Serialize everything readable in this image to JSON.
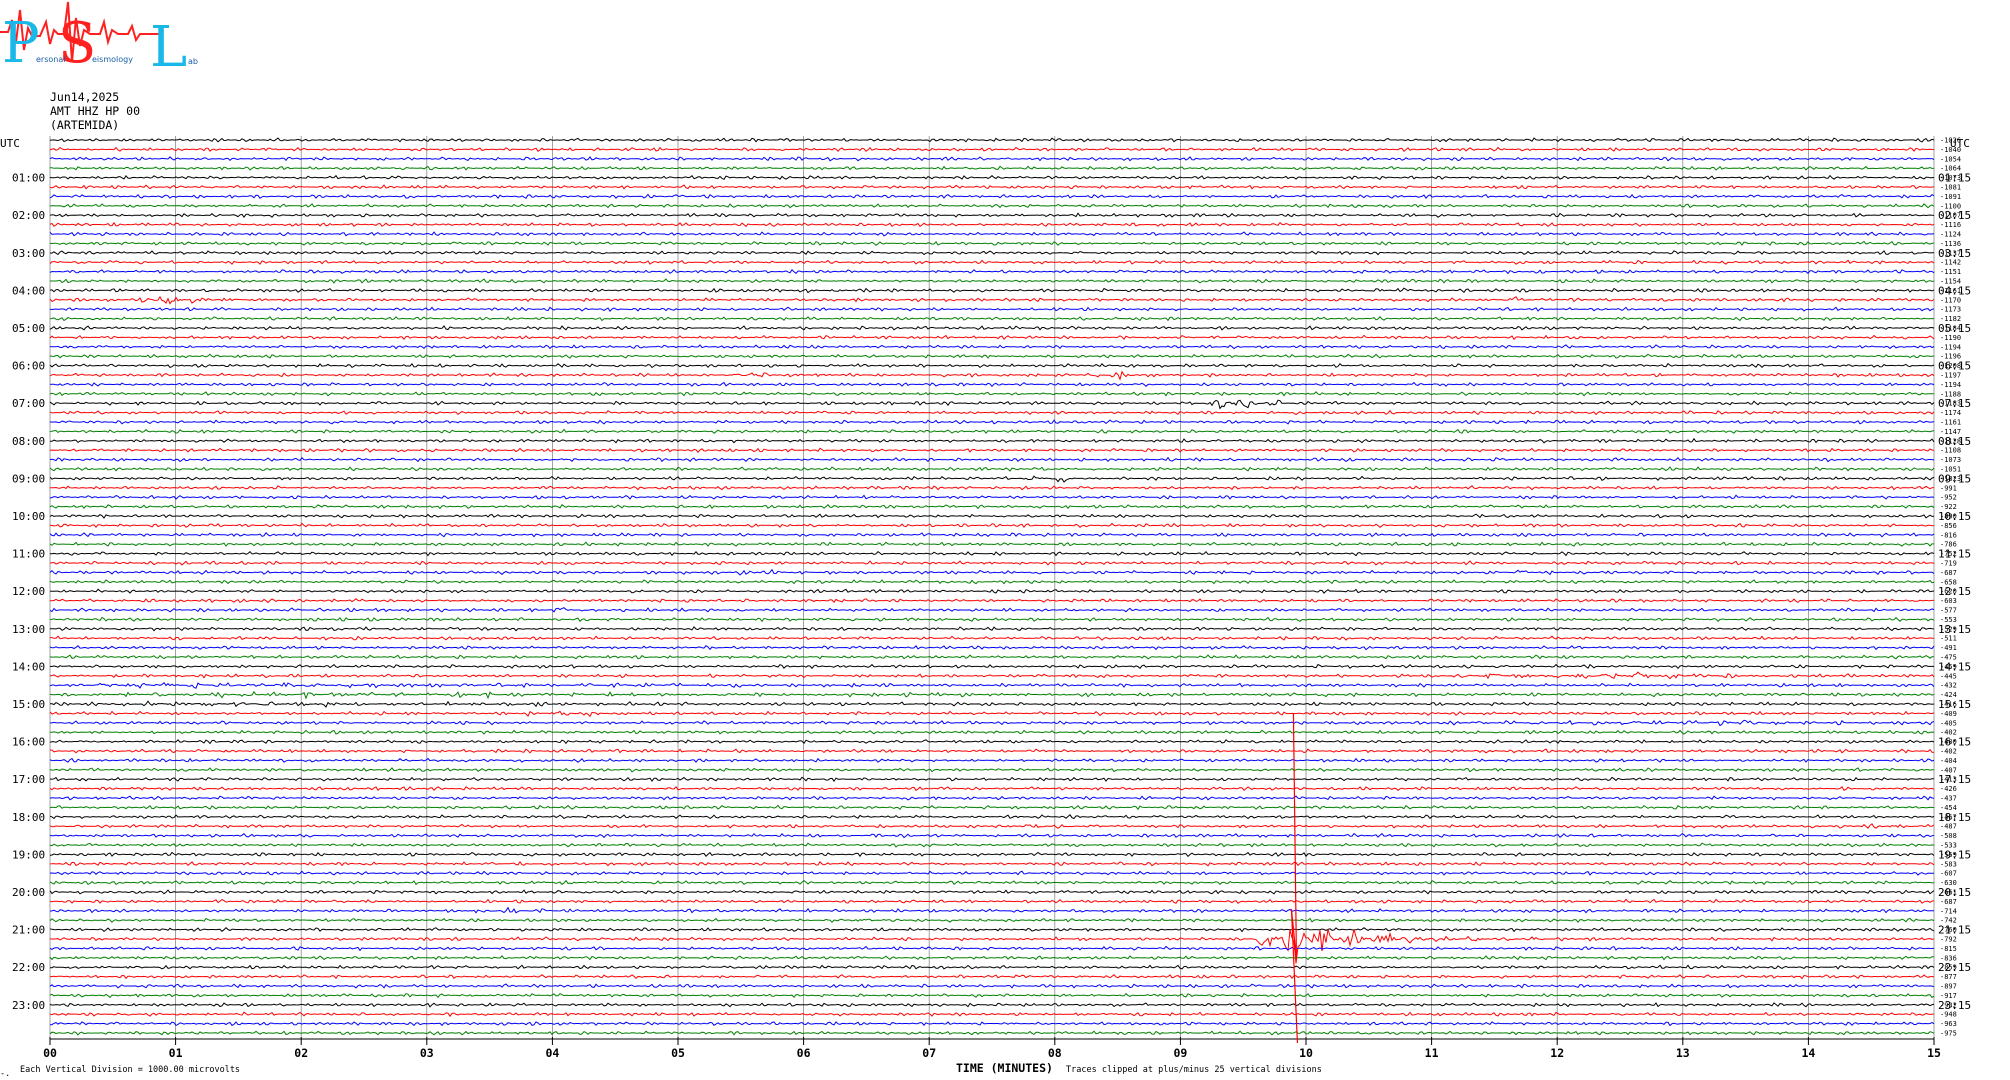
{
  "logo": {
    "letters": [
      "P",
      "S",
      "L"
    ],
    "words": [
      "ersonal",
      "eismology",
      "ab"
    ],
    "brand_colors": {
      "primary": "#1ab8e8",
      "accent": "#ff2020"
    }
  },
  "header": {
    "date": "Jun14,2025",
    "station": "AMT HHZ HP 00",
    "site": "(ARTEMIDA)"
  },
  "chart_data": {
    "type": "line",
    "title": "",
    "xlabel": "TIME (MINUTES)",
    "x_ticks": [
      "00",
      "01",
      "02",
      "03",
      "04",
      "05",
      "06",
      "07",
      "08",
      "09",
      "10",
      "11",
      "12",
      "13",
      "14",
      "15"
    ],
    "xlim": [
      0,
      15
    ],
    "left_axis_title": "UTC",
    "right_axis_title": "UTC",
    "left_hour_labels": [
      "01:00",
      "02:00",
      "03:00",
      "04:00",
      "05:00",
      "06:00",
      "07:00",
      "08:00",
      "09:00",
      "10:00",
      "11:00",
      "12:00",
      "13:00",
      "14:00",
      "15:00",
      "16:00",
      "17:00",
      "18:00",
      "19:00",
      "20:00",
      "21:00",
      "22:00",
      "23:00"
    ],
    "right_hour_labels": [
      "01:15",
      "02:15",
      "03:15",
      "04:15",
      "05:15",
      "06:15",
      "07:15",
      "08:15",
      "09:15",
      "10:15",
      "11:15",
      "12:15",
      "13:15",
      "14:15",
      "15:15",
      "16:15",
      "17:15",
      "18:15",
      "19:15",
      "20:15",
      "21:15",
      "22:15",
      "23:15"
    ],
    "trace_colors": [
      "#000000",
      "#ff0000",
      "#0000ff",
      "#008000"
    ],
    "trace_count": 96,
    "trace_offsets": [
      -1026,
      -1040,
      -1054,
      -1064,
      -1073,
      -1081,
      -1091,
      -1100,
      -1107,
      -1116,
      -1124,
      -1136,
      -1137,
      -1142,
      -1151,
      -1154,
      -1161,
      -1170,
      -1173,
      -1182,
      -1184,
      -1190,
      -1194,
      -1196,
      -1208,
      -1197,
      -1194,
      -1188,
      -1183,
      -1174,
      -1161,
      -1147,
      -1128,
      -1108,
      -1073,
      -1051,
      -1023,
      -991,
      -952,
      -922,
      -890,
      -856,
      -816,
      -786,
      -752,
      -719,
      -687,
      -658,
      -620,
      -603,
      -577,
      -553,
      -529,
      -511,
      -491,
      -475,
      -459,
      -445,
      -432,
      -424,
      -416,
      -409,
      -405,
      -402,
      -400,
      -402,
      -404,
      -407,
      -413,
      -426,
      -437,
      -454,
      -467,
      -487,
      -508,
      -533,
      -559,
      -583,
      -607,
      -630,
      -661,
      -687,
      -714,
      -742,
      -760,
      -792,
      -815,
      -836,
      -859,
      -877,
      -897,
      -917,
      -932,
      -948,
      -963,
      -975
    ],
    "events": [
      {
        "trace": 17,
        "start": 0.65,
        "end": 2.0,
        "amp": 5,
        "peak": 0.9
      },
      {
        "trace": 16,
        "start": 5.9,
        "end": 6.9,
        "amp": 1.5,
        "peak": 6.2
      },
      {
        "trace": 16,
        "start": 10.4,
        "end": 11.2,
        "amp": 2,
        "peak": 10.7
      },
      {
        "trace": 17,
        "start": 11.4,
        "end": 12.5,
        "amp": 1.6,
        "peak": 11.7
      },
      {
        "trace": 25,
        "start": 5.4,
        "end": 5.9,
        "amp": 5,
        "peak": 5.6
      },
      {
        "trace": 25,
        "start": 8.3,
        "end": 8.9,
        "amp": 3.5,
        "peak": 8.5
      },
      {
        "trace": 28,
        "start": 9.2,
        "end": 10.2,
        "amp": 6.5,
        "peak": 9.4
      },
      {
        "trace": 36,
        "start": 7.7,
        "end": 8.6,
        "amp": 2,
        "peak": 8.1
      },
      {
        "trace": 46,
        "start": 5.3,
        "end": 6.3,
        "amp": 2.2,
        "peak": 5.6
      },
      {
        "trace": 46,
        "start": 11.5,
        "end": 12.2,
        "amp": 2.2,
        "peak": 11.6
      },
      {
        "trace": 50,
        "start": 4.0,
        "end": 4.3,
        "amp": 2.5,
        "peak": 4.1
      },
      {
        "trace": 57,
        "start": 10.6,
        "end": 15.0,
        "amp": 2.5,
        "peak": 12.7
      },
      {
        "trace": 58,
        "start": 0.0,
        "end": 15.0,
        "amp": 2.2,
        "peak": 0.5
      },
      {
        "trace": 59,
        "start": 0.0,
        "end": 15.0,
        "amp": 2,
        "peak": 1.8
      },
      {
        "trace": 60,
        "start": 0.0,
        "end": 10.5,
        "amp": 2,
        "peak": 1.4
      },
      {
        "trace": 61,
        "start": 3.6,
        "end": 5.2,
        "amp": 2,
        "peak": 4.2
      },
      {
        "trace": 62,
        "start": 10.4,
        "end": 15.0,
        "amp": 2,
        "peak": 13.5
      },
      {
        "trace": 73,
        "start": 7.6,
        "end": 8.3,
        "amp": 3,
        "peak": 7.9
      },
      {
        "trace": 73,
        "start": 14.3,
        "end": 15.0,
        "amp": 2,
        "peak": 14.6
      },
      {
        "trace": 79,
        "start": 3.6,
        "end": 4.5,
        "amp": 2,
        "peak": 4.0
      },
      {
        "trace": 82,
        "start": 3.3,
        "end": 4.5,
        "amp": 1.8,
        "peak": 3.7
      },
      {
        "trace": 83,
        "start": 6.2,
        "end": 6.9,
        "amp": 1.8,
        "peak": 6.4
      },
      {
        "trace": 85,
        "start": 9.6,
        "end": 12.0,
        "amp": 16,
        "peak": 9.9
      },
      {
        "trace": 89,
        "start": 7.6,
        "end": 7.9,
        "amp": 1.5,
        "peak": 7.7
      },
      {
        "trace": 93,
        "start": 7.6,
        "end": 7.9,
        "amp": 1.5,
        "peak": 7.7
      }
    ],
    "grid": true
  },
  "footer": {
    "left_note": "Each Vertical Division = 1000.00 microvolts",
    "clip_note": "Traces clipped at plus/minus 25 vertical divisions",
    "corner_mark": "-."
  }
}
